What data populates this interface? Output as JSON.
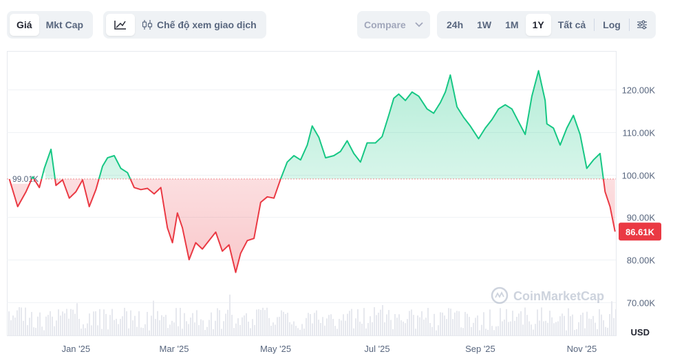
{
  "toolbar": {
    "price_tab": "Giá",
    "mktcap_tab": "Mkt Cap",
    "line_icon": "line-chart-icon",
    "trading_view": "Chế độ xem giao dịch",
    "compare": "Compare",
    "ranges": [
      "24h",
      "1W",
      "1M",
      "1Y",
      "Tất cả"
    ],
    "active_range": "1Y",
    "log": "Log",
    "settings_icon": "sliders-icon"
  },
  "colors": {
    "up": "#16c784",
    "down": "#ea3943",
    "grid": "#eff2f5",
    "axis_text": "#58667e",
    "volume": "#e6e8ee"
  },
  "chart_data": {
    "type": "area",
    "xlabel": "",
    "ylabel": "USD",
    "ylim": [
      62000,
      129000
    ],
    "yticks": [
      70000,
      80000,
      90000,
      100000,
      110000,
      120000
    ],
    "ytick_labels": [
      "70.00K",
      "80.00K",
      "90.00K",
      "100.00K",
      "110.00K",
      "120.00K"
    ],
    "xtick_labels": [
      "Jan '25",
      "Mar '25",
      "May '25",
      "Jul '25",
      "Sep '25",
      "Nov '25"
    ],
    "baseline": {
      "value": 99010,
      "label": "99.01K"
    },
    "current": {
      "value": 86610,
      "label": "86.61K"
    },
    "watermark": "CoinMarketCap",
    "series": [
      {
        "x": [
          "2024-11-22",
          "2024-11-27",
          "2024-12-02",
          "2024-12-06",
          "2024-12-10",
          "2024-12-13",
          "2024-12-17",
          "2024-12-20",
          "2024-12-24",
          "2024-12-28",
          "2025-01-01",
          "2025-01-05",
          "2025-01-09",
          "2025-01-13",
          "2025-01-17",
          "2025-01-20",
          "2025-01-24",
          "2025-01-28",
          "2025-02-01",
          "2025-02-05",
          "2025-02-09",
          "2025-02-13",
          "2025-02-17",
          "2025-02-21",
          "2025-02-25",
          "2025-02-28",
          "2025-03-03",
          "2025-03-06",
          "2025-03-10",
          "2025-03-14",
          "2025-03-18",
          "2025-03-22",
          "2025-03-26",
          "2025-03-30",
          "2025-04-03",
          "2025-04-07",
          "2025-04-10",
          "2025-04-14",
          "2025-04-18",
          "2025-04-22",
          "2025-04-26",
          "2025-04-30",
          "2025-05-04",
          "2025-05-08",
          "2025-05-12",
          "2025-05-16",
          "2025-05-20",
          "2025-05-23",
          "2025-05-27",
          "2025-05-31",
          "2025-06-05",
          "2025-06-09",
          "2025-06-13",
          "2025-06-17",
          "2025-06-21",
          "2025-06-25",
          "2025-06-30",
          "2025-07-04",
          "2025-07-08",
          "2025-07-11",
          "2025-07-14",
          "2025-07-18",
          "2025-07-22",
          "2025-07-26",
          "2025-07-31",
          "2025-08-04",
          "2025-08-08",
          "2025-08-11",
          "2025-08-14",
          "2025-08-18",
          "2025-08-22",
          "2025-08-26",
          "2025-08-31",
          "2025-09-04",
          "2025-09-08",
          "2025-09-12",
          "2025-09-16",
          "2025-09-20",
          "2025-09-24",
          "2025-09-28",
          "2025-10-02",
          "2025-10-06",
          "2025-10-10",
          "2025-10-11",
          "2025-10-15",
          "2025-10-19",
          "2025-10-23",
          "2025-10-27",
          "2025-10-31",
          "2025-11-04",
          "2025-11-08",
          "2025-11-12",
          "2025-11-15",
          "2025-11-18",
          "2025-11-21"
        ],
        "values": [
          99010,
          92500,
          96000,
          99500,
          97000,
          101500,
          106000,
          97500,
          98800,
          94500,
          96000,
          98800,
          92500,
          96500,
          102000,
          104000,
          104500,
          101500,
          100500,
          97000,
          96500,
          96800,
          95500,
          97000,
          87500,
          84000,
          91000,
          87500,
          80000,
          84000,
          82500,
          84500,
          86500,
          82000,
          83500,
          77000,
          81500,
          84500,
          85000,
          93500,
          94800,
          94500,
          99000,
          103000,
          104500,
          103500,
          107000,
          111500,
          108800,
          104000,
          104500,
          105500,
          108000,
          105000,
          103000,
          107500,
          107500,
          109000,
          114000,
          118000,
          119000,
          117500,
          119500,
          118500,
          115500,
          114500,
          117000,
          119500,
          123500,
          116000,
          113500,
          111500,
          108500,
          111000,
          113000,
          115500,
          116500,
          115500,
          112500,
          109500,
          118500,
          124500,
          117500,
          112000,
          111000,
          107000,
          111000,
          114000,
          109500,
          101500,
          103500,
          105000,
          96000,
          92500,
          86610
        ]
      }
    ]
  }
}
